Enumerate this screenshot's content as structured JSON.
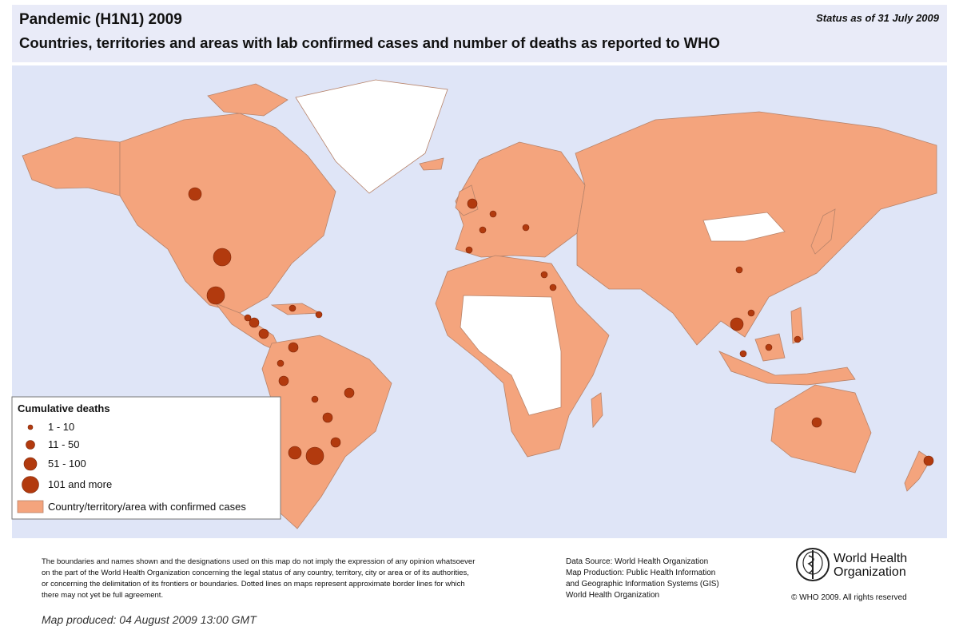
{
  "header": {
    "title": "Pandemic (H1N1) 2009",
    "subtitle": "Countries, territories and areas with lab confirmed cases and number of deaths as reported to WHO",
    "status": "Status as of 31 July 2009"
  },
  "legend": {
    "title": "Cumulative deaths",
    "items": [
      "1 - 10",
      "11 - 50",
      "51 - 100",
      "101 and more"
    ],
    "area_label": "Country/territory/area with confirmed cases"
  },
  "footer": {
    "disclaimer": [
      "The boundaries and names shown and the designations used on this map do not imply the expression of any opinion whatsoever",
      "on the part of the World Health Organization concerning the legal status of any country, territory, city or area or of its authorities,",
      "or concerning the delimitation of its frontiers or boundaries.  Dotted lines on maps represent approximate border lines for which",
      "there may not yet be full agreement."
    ],
    "data_source": [
      "Data Source: World Health Organization",
      "Map Production: Public Health Information",
      "and Geographic Information Systems (GIS)",
      "World Health Organization"
    ],
    "org": [
      "World Health",
      "Organization"
    ],
    "copyright": "© WHO 2009. All rights reserved",
    "produced": "Map produced: 04 August 2009 13:00 GMT"
  }
}
